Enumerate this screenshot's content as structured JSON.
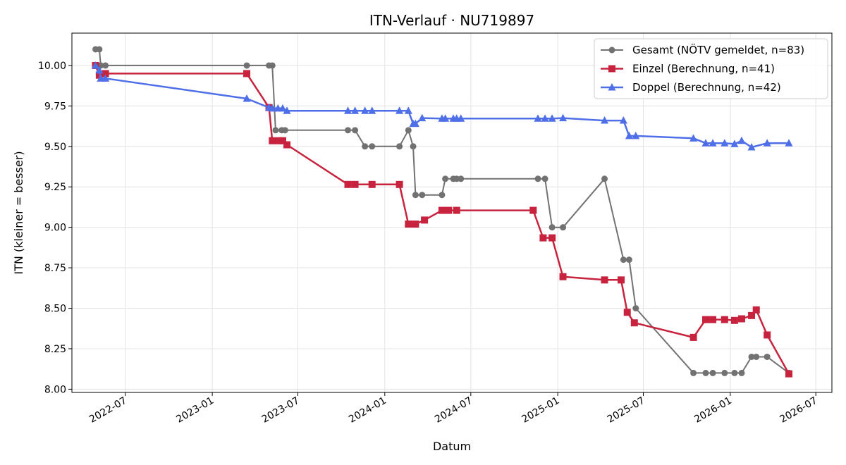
{
  "chart_data": {
    "type": "line",
    "title": "ITN-Verlauf · NU719897",
    "xlabel": "Datum",
    "ylabel": "ITN  (kleiner = besser)",
    "xlim": [
      "2022-03-10",
      "2026-08-04"
    ],
    "ylim": [
      7.98,
      10.2
    ],
    "grid": true,
    "legend_position": "top-right",
    "x_ticks": [
      "2022-07-01",
      "2023-01-01",
      "2023-07-01",
      "2024-01-01",
      "2024-07-01",
      "2025-01-01",
      "2025-07-01",
      "2026-01-01",
      "2026-07-01"
    ],
    "x_tick_labels": [
      "2022-07",
      "2023-01",
      "2023-07",
      "2024-01",
      "2024-07",
      "2025-01",
      "2025-07",
      "2026-01",
      "2026-07"
    ],
    "y_ticks": [
      8.0,
      8.25,
      8.5,
      8.75,
      9.0,
      9.25,
      9.5,
      9.75,
      10.0
    ],
    "y_tick_labels": [
      "8.00",
      "8.25",
      "8.50",
      "8.75",
      "9.00",
      "9.25",
      "9.50",
      "9.75",
      "10.00"
    ],
    "series": [
      {
        "name": "Gesamt (NÖTV gemeldet, n=83)",
        "color": "#444444",
        "marker": "circle",
        "points": [
          [
            "2022-04-29",
            10.1
          ],
          [
            "2022-05-07",
            10.1
          ],
          [
            "2022-05-10",
            10.0
          ],
          [
            "2022-05-20",
            10.0
          ],
          [
            "2023-03-15",
            10.0
          ],
          [
            "2023-05-01",
            10.0
          ],
          [
            "2023-05-08",
            10.0
          ],
          [
            "2023-05-15",
            9.6
          ],
          [
            "2023-05-28",
            9.6
          ],
          [
            "2023-06-04",
            9.6
          ],
          [
            "2023-10-15",
            9.6
          ],
          [
            "2023-10-30",
            9.6
          ],
          [
            "2023-11-20",
            9.5
          ],
          [
            "2023-12-05",
            9.5
          ],
          [
            "2024-02-01",
            9.5
          ],
          [
            "2024-02-20",
            9.6
          ],
          [
            "2024-03-01",
            9.5
          ],
          [
            "2024-03-06",
            9.2
          ],
          [
            "2024-03-20",
            9.2
          ],
          [
            "2024-05-01",
            9.2
          ],
          [
            "2024-05-08",
            9.3
          ],
          [
            "2024-05-25",
            9.3
          ],
          [
            "2024-06-01",
            9.3
          ],
          [
            "2024-06-10",
            9.3
          ],
          [
            "2024-11-20",
            9.3
          ],
          [
            "2024-12-05",
            9.3
          ],
          [
            "2024-12-20",
            9.0
          ],
          [
            "2025-01-12",
            9.0
          ],
          [
            "2025-04-10",
            9.3
          ],
          [
            "2025-05-20",
            8.8
          ],
          [
            "2025-06-01",
            8.8
          ],
          [
            "2025-06-15",
            8.5
          ],
          [
            "2025-10-15",
            8.1
          ],
          [
            "2025-11-10",
            8.1
          ],
          [
            "2025-11-25",
            8.1
          ],
          [
            "2025-12-20",
            8.1
          ],
          [
            "2026-01-10",
            8.1
          ],
          [
            "2026-01-25",
            8.1
          ],
          [
            "2026-02-15",
            8.2
          ],
          [
            "2026-02-25",
            8.2
          ],
          [
            "2026-03-20",
            8.2
          ],
          [
            "2026-05-05",
            8.1
          ]
        ]
      },
      {
        "name": "Einzel (Berechnung, n=41)",
        "color": "#c8233e",
        "marker": "square",
        "points": [
          [
            "2022-04-29",
            10.0
          ],
          [
            "2022-05-07",
            9.94
          ],
          [
            "2022-05-20",
            9.95
          ],
          [
            "2023-03-15",
            9.95
          ],
          [
            "2023-05-01",
            9.74
          ],
          [
            "2023-05-08",
            9.535
          ],
          [
            "2023-05-22",
            9.535
          ],
          [
            "2023-05-30",
            9.535
          ],
          [
            "2023-06-08",
            9.51
          ],
          [
            "2023-10-15",
            9.265
          ],
          [
            "2023-10-30",
            9.265
          ],
          [
            "2023-12-05",
            9.265
          ],
          [
            "2024-02-01",
            9.265
          ],
          [
            "2024-02-20",
            9.02
          ],
          [
            "2024-03-01",
            9.02
          ],
          [
            "2024-03-06",
            9.02
          ],
          [
            "2024-03-25",
            9.045
          ],
          [
            "2024-05-01",
            9.105
          ],
          [
            "2024-05-15",
            9.105
          ],
          [
            "2024-06-01",
            9.105
          ],
          [
            "2024-11-10",
            9.105
          ],
          [
            "2024-12-01",
            8.935
          ],
          [
            "2024-12-20",
            8.935
          ],
          [
            "2025-01-12",
            8.695
          ],
          [
            "2025-04-10",
            8.675
          ],
          [
            "2025-05-15",
            8.675
          ],
          [
            "2025-05-28",
            8.475
          ],
          [
            "2025-06-12",
            8.41
          ],
          [
            "2025-10-15",
            8.32
          ],
          [
            "2025-11-10",
            8.43
          ],
          [
            "2025-11-25",
            8.43
          ],
          [
            "2025-12-20",
            8.43
          ],
          [
            "2026-01-10",
            8.425
          ],
          [
            "2026-01-25",
            8.435
          ],
          [
            "2026-02-15",
            8.455
          ],
          [
            "2026-02-25",
            8.49
          ],
          [
            "2026-03-20",
            8.335
          ],
          [
            "2026-05-05",
            8.095
          ]
        ]
      },
      {
        "name": "Doppel (Berechnung, n=42)",
        "color": "#4f6fe8",
        "marker": "triangle",
        "points": [
          [
            "2022-04-29",
            10.0
          ],
          [
            "2022-05-07",
            9.97
          ],
          [
            "2022-05-10",
            9.92
          ],
          [
            "2022-05-20",
            9.92
          ],
          [
            "2023-03-15",
            9.795
          ],
          [
            "2023-05-01",
            9.74
          ],
          [
            "2023-05-08",
            9.735
          ],
          [
            "2023-05-20",
            9.735
          ],
          [
            "2023-05-30",
            9.735
          ],
          [
            "2023-06-08",
            9.72
          ],
          [
            "2023-10-15",
            9.72
          ],
          [
            "2023-10-30",
            9.72
          ],
          [
            "2023-11-20",
            9.72
          ],
          [
            "2023-12-05",
            9.72
          ],
          [
            "2024-02-01",
            9.72
          ],
          [
            "2024-02-20",
            9.72
          ],
          [
            "2024-03-01",
            9.64
          ],
          [
            "2024-03-06",
            9.64
          ],
          [
            "2024-03-20",
            9.675
          ],
          [
            "2024-05-01",
            9.672
          ],
          [
            "2024-05-08",
            9.672
          ],
          [
            "2024-05-25",
            9.672
          ],
          [
            "2024-06-01",
            9.672
          ],
          [
            "2024-06-10",
            9.672
          ],
          [
            "2024-11-20",
            9.672
          ],
          [
            "2024-12-05",
            9.672
          ],
          [
            "2024-12-20",
            9.672
          ],
          [
            "2025-01-12",
            9.675
          ],
          [
            "2025-04-10",
            9.66
          ],
          [
            "2025-05-20",
            9.66
          ],
          [
            "2025-06-01",
            9.565
          ],
          [
            "2025-06-15",
            9.565
          ],
          [
            "2025-10-15",
            9.55
          ],
          [
            "2025-11-10",
            9.52
          ],
          [
            "2025-11-25",
            9.52
          ],
          [
            "2025-12-20",
            9.52
          ],
          [
            "2026-01-10",
            9.515
          ],
          [
            "2026-01-25",
            9.535
          ],
          [
            "2026-02-15",
            9.495
          ],
          [
            "2026-03-20",
            9.52
          ],
          [
            "2026-05-05",
            9.52
          ]
        ]
      }
    ]
  }
}
